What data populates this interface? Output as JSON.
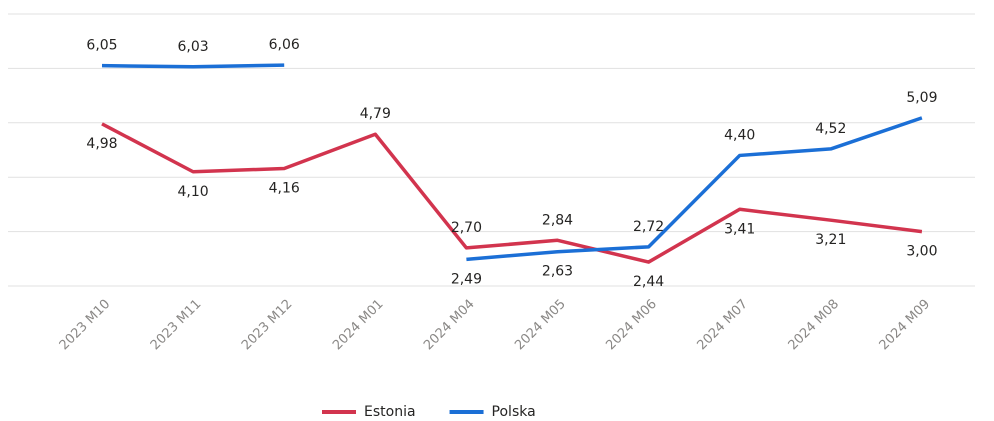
{
  "chart_data": {
    "type": "line",
    "categories": [
      "2023 M10",
      "2023 M11",
      "2023 M12",
      "2024 M01",
      "2024 M04",
      "2024 M05",
      "2024 M06",
      "2024 M07",
      "2024 M08",
      "2024 M09"
    ],
    "series": [
      {
        "name": "Estonia",
        "color": "#d2344e",
        "values": [
          4.98,
          4.1,
          4.16,
          4.79,
          2.7,
          2.84,
          2.44,
          3.41,
          3.21,
          3.0
        ],
        "value_labels": [
          "4,98",
          "4,10",
          "4,16",
          "4,79",
          "2,70",
          "2,84",
          "2,44",
          "3,41",
          "3,21",
          "3,00"
        ]
      },
      {
        "name": "Polska",
        "color": "#1b6fd6",
        "values": [
          6.05,
          6.03,
          6.06,
          null,
          2.49,
          2.63,
          2.72,
          4.4,
          4.52,
          5.09
        ],
        "value_labels": [
          "6,05",
          "6,03",
          "6,06",
          null,
          "2,49",
          "2,63",
          "2,72",
          "4,40",
          "4,52",
          "5,09"
        ]
      }
    ],
    "ylim": [
      2,
      7
    ],
    "yticks": [
      2,
      3,
      4,
      5,
      6,
      7
    ],
    "grid": true
  }
}
